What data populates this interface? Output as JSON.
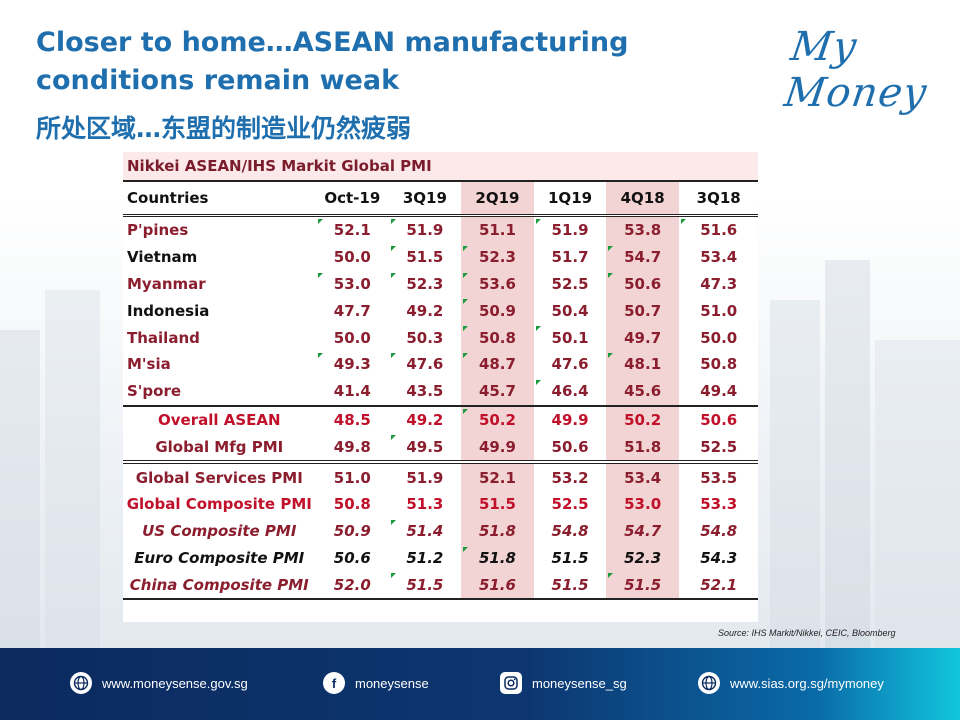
{
  "header": {
    "title": "Closer to home…ASEAN manufacturing conditions remain weak",
    "subtitle": "所处区域…东盟的制造业仍然疲弱",
    "logo": "My Money"
  },
  "table": {
    "title": "Nikkei ASEAN/IHS Markit Global PMI",
    "columns": [
      "Countries",
      "Oct-19",
      "3Q19",
      "2Q19",
      "1Q19",
      "4Q18",
      "3Q18"
    ],
    "rows": [
      {
        "label": "P'pines",
        "values": [
          "52.1",
          "51.9",
          "51.1",
          "51.9",
          "53.8",
          "51.6"
        ]
      },
      {
        "label": "Vietnam",
        "values": [
          "50.0",
          "51.5",
          "52.3",
          "51.7",
          "54.7",
          "53.4"
        ]
      },
      {
        "label": "Myanmar",
        "values": [
          "53.0",
          "52.3",
          "53.6",
          "52.5",
          "50.6",
          "47.3"
        ]
      },
      {
        "label": "Indonesia",
        "values": [
          "47.7",
          "49.2",
          "50.9",
          "50.4",
          "50.7",
          "51.0"
        ]
      },
      {
        "label": "Thailand",
        "values": [
          "50.0",
          "50.3",
          "50.8",
          "50.1",
          "49.7",
          "50.0"
        ]
      },
      {
        "label": "M'sia",
        "values": [
          "49.3",
          "47.6",
          "48.7",
          "47.6",
          "48.1",
          "50.8"
        ]
      },
      {
        "label": "S'pore",
        "values": [
          "41.4",
          "43.5",
          "45.7",
          "46.4",
          "45.6",
          "49.4"
        ]
      },
      {
        "label": "Overall ASEAN",
        "values": [
          "48.5",
          "49.2",
          "50.2",
          "49.9",
          "50.2",
          "50.6"
        ]
      },
      {
        "label": "Global Mfg PMI",
        "values": [
          "49.8",
          "49.5",
          "49.9",
          "50.6",
          "51.8",
          "52.5"
        ]
      },
      {
        "label": "Global Services PMI",
        "values": [
          "51.0",
          "51.9",
          "52.1",
          "53.2",
          "53.4",
          "53.5"
        ]
      },
      {
        "label": "Global Composite PMI",
        "values": [
          "50.8",
          "51.3",
          "51.5",
          "52.5",
          "53.0",
          "53.3"
        ]
      },
      {
        "label": "US Composite PMI",
        "values": [
          "50.9",
          "51.4",
          "51.8",
          "54.8",
          "54.7",
          "54.8"
        ]
      },
      {
        "label": "Euro Composite PMI",
        "values": [
          "50.6",
          "51.2",
          "51.8",
          "51.5",
          "52.3",
          "54.3"
        ]
      },
      {
        "label": "China Composite PMI",
        "values": [
          "52.0",
          "51.5",
          "51.6",
          "51.5",
          "51.5",
          "52.1"
        ]
      }
    ]
  },
  "source": "Source: IHS Markit/Nikkei, CEIC, Bloomberg",
  "footer": {
    "items": [
      {
        "icon": "globe-icon",
        "text": "www.moneysense.gov.sg"
      },
      {
        "icon": "facebook-icon",
        "text": "moneysense"
      },
      {
        "icon": "instagram-icon",
        "text": "moneysense_sg"
      },
      {
        "icon": "globe-icon",
        "text": "www.sias.org.sg/mymoney"
      }
    ]
  },
  "colors": {
    "title": "#1f6fae",
    "highlight": "#f3d4d4",
    "red": "#c0102a",
    "footer": "#0b2a5e"
  }
}
